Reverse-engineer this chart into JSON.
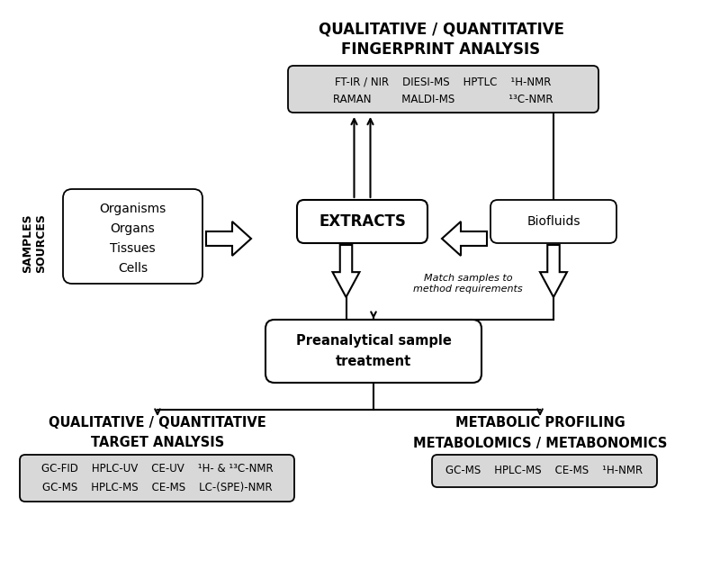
{
  "bg_color": "#ffffff",
  "text_color": "#000000",
  "box_bg_gray": "#d8d8d8",
  "box_bg_white": "#ffffff",
  "top_title_line1": "QUALITATIVE / QUANTITATIVE",
  "top_title_line2": "FINGERPRINT ANALYSIS",
  "top_box_line1": "FT-IR / NIR    DIESI-MS    HPTLC    ¹H-NMR",
  "top_box_line2": "RAMAN         MALDI-MS                ¹³C-NMR",
  "organisms_box_lines": [
    "Organisms",
    "Organs",
    "Tissues",
    "Cells"
  ],
  "extracts_label": "EXTRACTS",
  "biofluids_label": "Biofluids",
  "preanalytical_line1": "Preanalytical sample",
  "preanalytical_line2": "treatment",
  "match_text": "Match samples to\nmethod requirements",
  "samples_sources_text": "SAMPLES\nSOURCES",
  "bottom_left_title1": "QUALITATIVE / QUANTITATIVE",
  "bottom_left_title2": "TARGET ANALYSIS",
  "bottom_left_box_line1": "GC-FID    HPLC-UV    CE-UV    ¹H- & ¹³C-NMR",
  "bottom_left_box_line2": "GC-MS    HPLC-MS    CE-MS    LC-(SPE)-NMR",
  "bottom_right_title1": "METABOLIC PROFILING",
  "bottom_right_title2": "METABOLOMICS / METABONOMICS",
  "bottom_right_box_line1": "GC-MS    HPLC-MS    CE-MS    ¹H-NMR"
}
